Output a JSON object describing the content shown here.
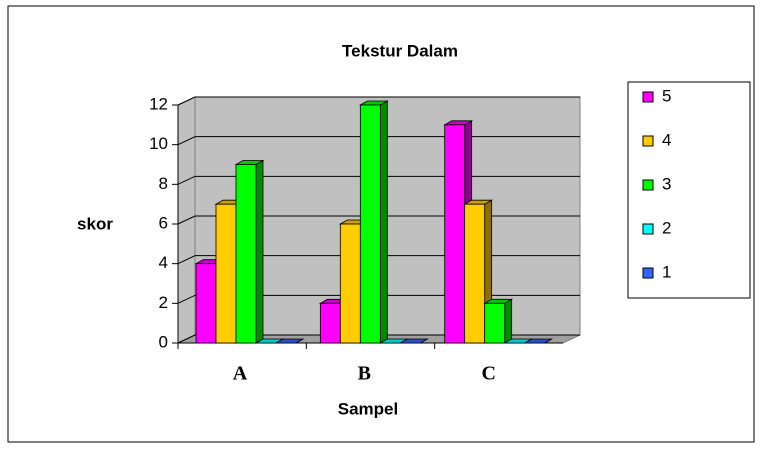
{
  "chart_data": {
    "type": "bar3d",
    "title": "Tekstur Dalam",
    "x_label": "Sampel",
    "y_label": "skor",
    "categories": [
      "A",
      "B",
      "C"
    ],
    "series": [
      {
        "name": "5",
        "color": "#ff00ff",
        "values": [
          4,
          2,
          11
        ]
      },
      {
        "name": "4",
        "color": "#ffcc00",
        "values": [
          7,
          6,
          7
        ]
      },
      {
        "name": "3",
        "color": "#00ff00",
        "values": [
          9,
          12,
          2
        ]
      },
      {
        "name": "2",
        "color": "#00ffff",
        "values": [
          0,
          0,
          0
        ]
      },
      {
        "name": "1",
        "color": "#3366ff",
        "values": [
          0,
          0,
          0
        ]
      }
    ],
    "ylim": [
      0,
      12
    ],
    "yticks": [
      0,
      2,
      4,
      6,
      8,
      10,
      12
    ],
    "grid": true,
    "legend": "right"
  }
}
